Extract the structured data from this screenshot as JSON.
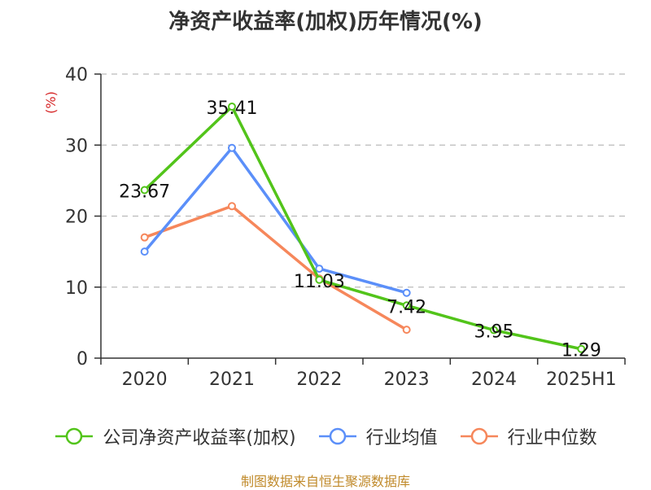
{
  "title": "净资产收益率(加权)历年情况(%)",
  "source": "制图数据来自恒生聚源数据库",
  "chart_data": {
    "type": "line",
    "title": "净资产收益率(加权)历年情况(%)",
    "ylabel": "(%)",
    "xlabel": "",
    "categories": [
      "2020",
      "2021",
      "2022",
      "2023",
      "2024",
      "2025H1"
    ],
    "ylim": [
      0,
      40
    ],
    "yticks": [
      0,
      10,
      20,
      30,
      40
    ],
    "grid": true,
    "legend": "bottom",
    "series": [
      {
        "name": "公司净资产收益率(加权)",
        "color": "#52c41a",
        "values": [
          23.67,
          35.41,
          11.03,
          7.42,
          3.95,
          1.29
        ],
        "labels": [
          "23.67",
          "35.41",
          "11.03",
          "7.42",
          "3.95",
          "1.29"
        ]
      },
      {
        "name": "行业均值",
        "color": "#5b8ff9",
        "values": [
          15.0,
          29.6,
          12.6,
          9.2,
          null,
          null
        ]
      },
      {
        "name": "行业中位数",
        "color": "#f6875b",
        "values": [
          17.0,
          21.4,
          11.2,
          4.0,
          null,
          null
        ]
      }
    ]
  }
}
